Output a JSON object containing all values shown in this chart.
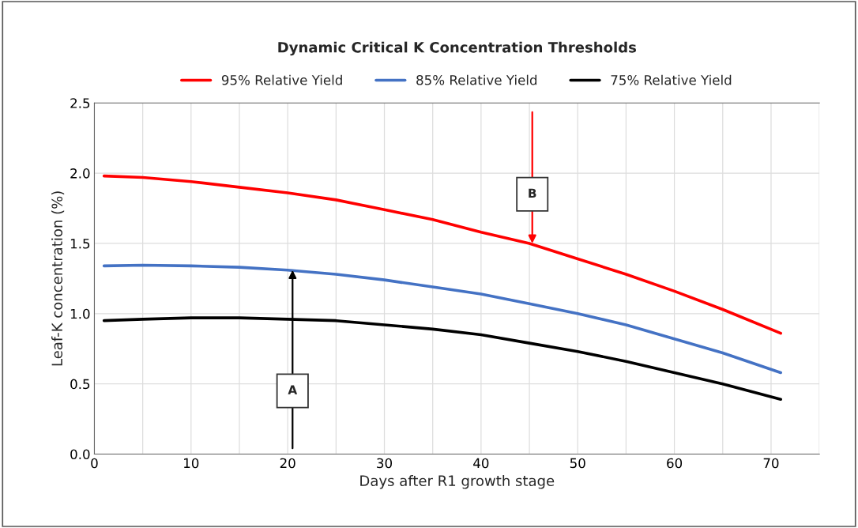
{
  "chart_data": {
    "type": "line",
    "title": "Dynamic Critical K Concentration Thresholds",
    "xlabel": "Days after R1 growth stage",
    "ylabel": "Leaf-K concentration (%)",
    "x": [
      1,
      5,
      10,
      15,
      20,
      25,
      30,
      35,
      40,
      45,
      50,
      55,
      60,
      65,
      71
    ],
    "series": [
      {
        "name": "95% Relative Yield",
        "color": "#ff0000",
        "values": [
          1.98,
          1.97,
          1.94,
          1.9,
          1.86,
          1.81,
          1.74,
          1.67,
          1.58,
          1.5,
          1.39,
          1.28,
          1.16,
          1.03,
          0.86
        ]
      },
      {
        "name": "85% Relative Yield",
        "color": "#4472c4",
        "values": [
          1.34,
          1.345,
          1.34,
          1.33,
          1.31,
          1.28,
          1.24,
          1.19,
          1.14,
          1.07,
          1.0,
          0.92,
          0.82,
          0.72,
          0.58
        ]
      },
      {
        "name": "75% Relative Yield",
        "color": "#000000",
        "values": [
          0.95,
          0.96,
          0.97,
          0.97,
          0.96,
          0.95,
          0.92,
          0.89,
          0.85,
          0.79,
          0.73,
          0.66,
          0.58,
          0.5,
          0.39
        ]
      }
    ],
    "xlim": [
      0,
      75
    ],
    "xticks": [
      0,
      {
        "value": 5,
        "label": null
      },
      10,
      {
        "value": 15,
        "label": null
      },
      20,
      {
        "value": 25,
        "label": null
      },
      30,
      {
        "value": 35,
        "label": null
      },
      40,
      {
        "value": 45,
        "label": null
      },
      50,
      {
        "value": 55,
        "label": null
      },
      60,
      {
        "value": 65,
        "label": null
      },
      70,
      {
        "value": 75,
        "label": null
      }
    ],
    "ylim": [
      0,
      2.5
    ],
    "yticks": [
      {
        "value": 0,
        "label": "0.0"
      },
      0.5,
      {
        "value": 1,
        "label": "1.0"
      },
      1.5,
      {
        "value": 2,
        "label": "2.0"
      },
      2.5
    ],
    "annotations": [
      {
        "text": "A",
        "x": 20.5,
        "y": 1.31
      },
      {
        "text": "B",
        "x": 45.3,
        "y": 1.5
      }
    ],
    "grid": true,
    "legend": "top",
    "marker": "none",
    "line_style": "solid"
  }
}
